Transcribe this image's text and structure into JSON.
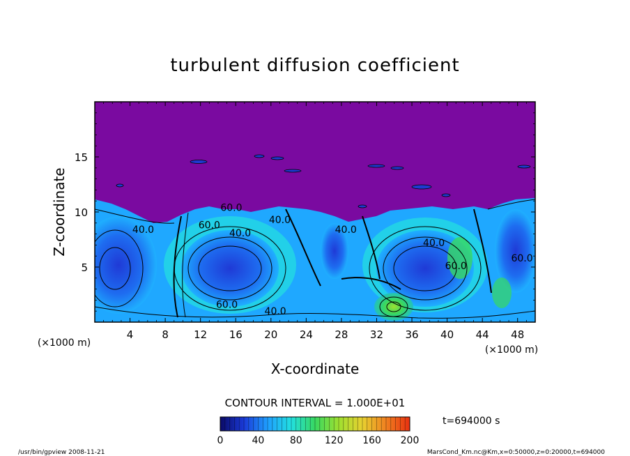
{
  "chart_data": {
    "type": "heatmap",
    "title": "turbulent diffusion coefficient",
    "xlabel": "X-coordinate",
    "ylabel": "Z-coordinate",
    "x_unit_label": "(×1000 m)",
    "z_unit_label": "(×1000 m)",
    "xlim": [
      0,
      50
    ],
    "ylim": [
      0,
      20
    ],
    "x_ticks": [
      4,
      8,
      12,
      16,
      20,
      24,
      28,
      32,
      36,
      40,
      44,
      48
    ],
    "y_ticks": [
      5,
      10,
      15
    ],
    "contour_labels": [
      {
        "text": "40.0",
        "x": 5.5,
        "z": 8.1
      },
      {
        "text": "60.0",
        "x": 13.0,
        "z": 8.5
      },
      {
        "text": "40.0",
        "x": 16.5,
        "z": 7.8
      },
      {
        "text": "40.0",
        "x": 21.0,
        "z": 9.0
      },
      {
        "text": "40.0",
        "x": 28.5,
        "z": 8.1
      },
      {
        "text": "40.0",
        "x": 38.5,
        "z": 6.9
      },
      {
        "text": "60.0",
        "x": 41.0,
        "z": 4.8
      },
      {
        "text": "60.0",
        "x": 48.5,
        "z": 5.5
      },
      {
        "text": "60.0",
        "x": 15.5,
        "z": 10.1
      },
      {
        "text": "40.0",
        "x": 20.5,
        "z": 0.7
      },
      {
        "text": "60.0",
        "x": 15.0,
        "z": 1.3
      }
    ],
    "contour_interval_text": "CONTOUR INTERVAL = 1.000E+01",
    "colorbar": {
      "min": 0,
      "max": 200,
      "ticks": [
        0,
        40,
        80,
        120,
        160,
        200
      ],
      "colors": [
        "#0a0a66",
        "#1a3ad8",
        "#1f9fff",
        "#22e0e0",
        "#38d860",
        "#9fe030",
        "#e8d030",
        "#f08020",
        "#e83010"
      ]
    },
    "time_label": "t=694000 s"
  },
  "footer": {
    "left": "/usr/bin/gpview   2008-11-21",
    "right": "MarsCond_Km.nc@Km,x=0:50000,z=0:20000,t=694000"
  },
  "colors": {
    "upper_region": "#7a0aa0",
    "background": "#ffffff"
  }
}
